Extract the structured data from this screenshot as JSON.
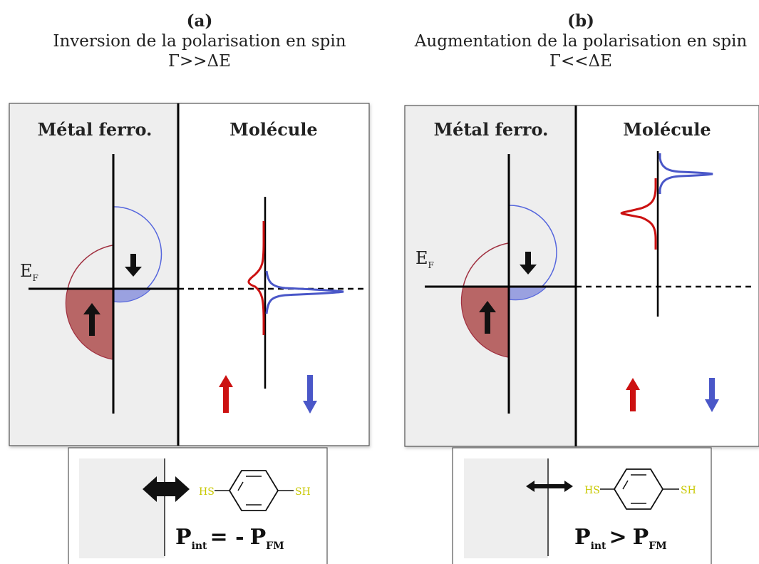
{
  "panel_a": {
    "tag": "(a)",
    "title": "Inversion de la polarisation en spin",
    "condition": "Γ>>ΔE",
    "metal_label": "Métal ferro.",
    "molecule_label": "Molécule",
    "fermi_main": "E",
    "fermi_sub": "F",
    "molecule_left_group": "HS",
    "molecule_right_group": "SH",
    "formula": {
      "p": "P",
      "sub1": "int",
      "op": "= -",
      "p2": "P",
      "sub2": "FM"
    }
  },
  "panel_b": {
    "tag": "(b)",
    "title": "Augmentation de la polarisation en spin",
    "condition": "Γ<<ΔE",
    "metal_label": "Métal ferro.",
    "molecule_label": "Molécule",
    "fermi_main": "E",
    "fermi_sub": "F",
    "molecule_left_group": "HS",
    "molecule_right_group": "SH",
    "formula": {
      "p": "P",
      "sub1": "int",
      "op": ">",
      "p2": "P",
      "sub2": "FM"
    }
  },
  "colors": {
    "spin_up": "#cc1111",
    "spin_down": "#4a57c8",
    "up_fill": "#b86666",
    "down_fill": "#9aa1e0",
    "metal_bg": "#eeeeee",
    "thiol": "#c8c800"
  }
}
